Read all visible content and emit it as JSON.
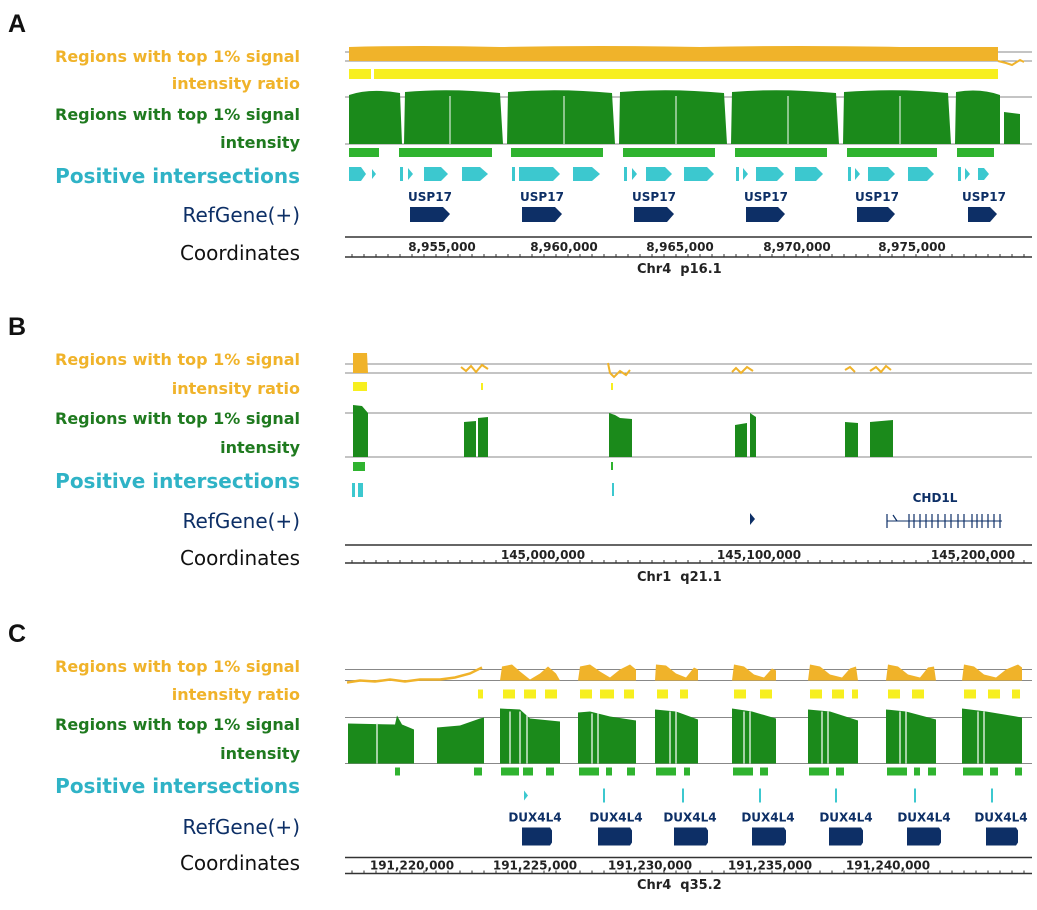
{
  "labels": {
    "ratio_line1": "Regions with top 1% signal",
    "ratio_line2": "intensity ratio",
    "int_line1": "Regions with top 1% signal",
    "int_line2": "intensity",
    "positive": "Positive intersections",
    "refgene": "RefGene(+)",
    "coordinates": "Coordinates"
  },
  "colors": {
    "ratio": "#f0b32a",
    "ratio_bar": "#f7ef1f",
    "intensity": "#1b8a1b",
    "intensity_bar": "#2fb32f",
    "positive": "#3cc8cf",
    "gene": "#0d2f66"
  },
  "panels": [
    {
      "id": "A",
      "chromosome": "Chr4  p16.1",
      "gene_name": "USP17",
      "gene_copies": 6,
      "coordinates": [
        "8,955,000",
        "8,960,000",
        "8,965,000",
        "8,970,000",
        "8,975,000"
      ]
    },
    {
      "id": "B",
      "chromosome": "Chr1  q21.1",
      "gene_name": "CHD1L",
      "coordinates": [
        "145,000,000",
        "145,100,000",
        "145,200,000"
      ]
    },
    {
      "id": "C",
      "chromosome": "Chr4  q35.2",
      "gene_name": "DUX4L4",
      "gene_copies": 7,
      "coordinates": [
        "191,220,000",
        "191,225,000",
        "191,230,000",
        "191,235,000",
        "191,240,000"
      ]
    }
  ]
}
